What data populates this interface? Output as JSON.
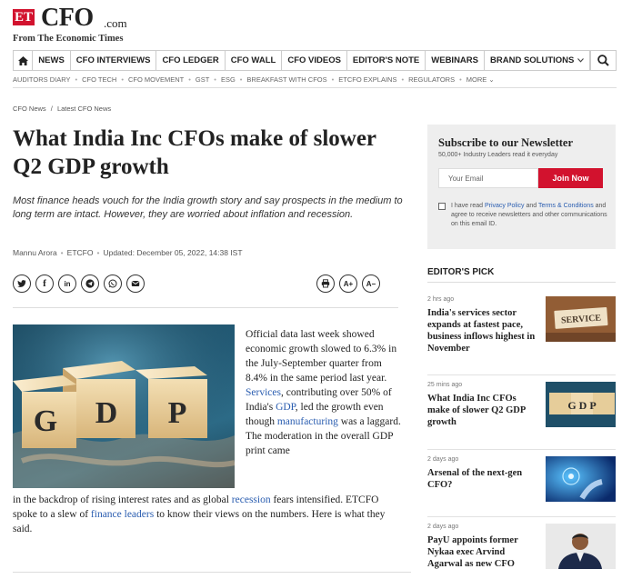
{
  "header": {
    "logo_et": "ET",
    "logo_cfo": "CFO",
    "logo_com": ".com",
    "tagline": "From The Economic Times"
  },
  "nav": {
    "items": [
      "NEWS",
      "CFO INTERVIEWS",
      "CFO LEDGER",
      "CFO WALL",
      "CFO VIDEOS",
      "EDITOR'S NOTE",
      "WEBINARS",
      "BRAND SOLUTIONS"
    ],
    "home_icon": "home-icon",
    "dropdown_icon": "chevron-down-icon",
    "search_icon": "search-icon"
  },
  "subnav": {
    "items": [
      "AUDITORS DIARY",
      "CFO TECH",
      "CFO MOVEMENT",
      "GST",
      "ESG",
      "BREAKFAST WITH CFOS",
      "ETCFO EXPLAINS",
      "REGULATORS",
      "MORE"
    ]
  },
  "breadcrumb": {
    "home": "CFO News",
    "sep": "/",
    "current": "Latest CFO News"
  },
  "article": {
    "title": "What India Inc CFOs make of slower Q2 GDP growth",
    "summary": "Most finance heads vouch for the India growth story and say prospects in the medium to long term are intact. However, they are worried about inflation and recession.",
    "author": "Mannu Arora",
    "source": "ETCFO",
    "updated": "Updated: December 05, 2022, 14:38 IST",
    "share_icons": [
      "twitter-icon",
      "facebook-icon",
      "linkedin-icon",
      "telegram-icon",
      "whatsapp-icon",
      "email-icon"
    ],
    "share_labels": {
      "facebook": "f",
      "linkedin": "in"
    },
    "tools": {
      "font_up": "A+",
      "font_down": "A−"
    },
    "hero_text": "GDP",
    "body": {
      "t1": "Official data last week showed economic growth slowed to 6.3% in the July-September quarter from 8.4% in the same period last year. ",
      "link_services": "Services",
      "t2": ", contributing over 50% of India's ",
      "link_gdp": "GDP",
      "t3": ", led the growth even though ",
      "link_manufacturing": "manufacturing",
      "t4": " was a laggard. The moderation in the overall GDP print came",
      "t5": "in the backdrop of rising interest rates and as global ",
      "link_recession": "recession",
      "t6": " fears intensified. ETCFO spoke to a slew of ",
      "link_finance_leaders": "finance leaders",
      "t7": " to know their views on the numbers. Here is what they said."
    }
  },
  "newsletter": {
    "title": "Subscribe to our Newsletter",
    "subtitle": "50,000+ Industry Leaders read it everyday",
    "placeholder": "Your Email",
    "button": "Join Now",
    "consent_pre": "I have read ",
    "privacy": "Privacy Policy",
    "and": " and ",
    "terms": "Terms & Conditions",
    "consent_post": " and agree to receive newsletters and other communications on this email ID."
  },
  "editors_pick": {
    "heading": "EDITOR'S PICK",
    "items": [
      {
        "time": "2 hrs ago",
        "title": "India's services sector expands at fastest pace, business inflows highest in November",
        "thumb_text": "SERVICE"
      },
      {
        "time": "25 mins ago",
        "title": "What India Inc CFOs make of slower Q2 GDP growth",
        "thumb_text": "G D P"
      },
      {
        "time": "2 days ago",
        "title": "Arsenal of the next-gen CFO?",
        "thumb_text": ""
      },
      {
        "time": "2 days ago",
        "title": "PayU appoints former Nykaa exec Arvind Agarwal as new CFO",
        "thumb_text": ""
      }
    ]
  },
  "colors": {
    "brand_red": "#d2122e",
    "link_blue": "#2a5db0"
  }
}
